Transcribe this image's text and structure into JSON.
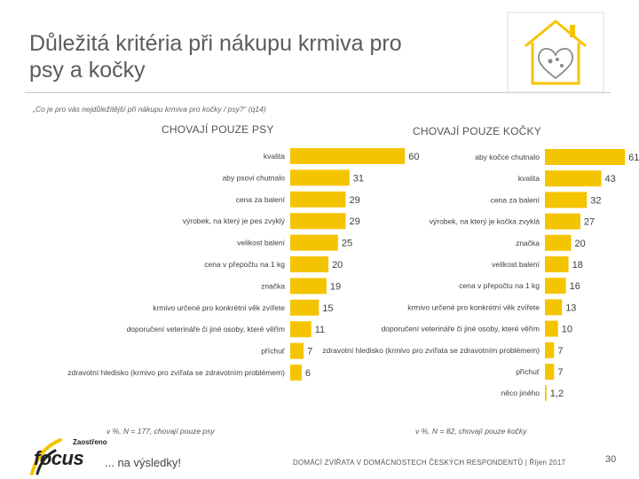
{
  "slide": {
    "title_line1": "Důležitá kritéria při nákupu krmiva pro",
    "title_line2": "psy a kočky",
    "question": "„Co je pro vás nejdůležitější při nákupu krmiva pro kočky / psy?“ (q14)",
    "footer": "DOMÁCÍ ZVÍŘATA V DOMÁCNOSTECH ČESKÝCH RESPONDENTŮ | Říjen 2017",
    "page_number": "30",
    "brand_top": "Zaostřeno",
    "brand_name": "focus",
    "brand_tagline": "... na výsledky!",
    "logo_icon": "house-heart-icon",
    "accent_color": "#f5c400"
  },
  "chart_data": [
    {
      "type": "bar",
      "orientation": "horizontal",
      "title": "CHOVAJÍ POUZE PSY",
      "note": "v %, N = 177, chovají pouze psy",
      "bar_color": "#f5c400",
      "xlim": [
        0,
        65
      ],
      "categories": [
        "kvalita",
        "aby psovi chutnalo",
        "cena za balení",
        "výrobek, na který je pes zvyklý",
        "velikost balení",
        "cena v přepočtu na 1 kg",
        "značka",
        "krmivo určené pro konkrétní věk zvířete",
        "doporučení veterináře či jiné osoby, které věřím",
        "příchuť",
        "zdravotní hledisko (krmivo pro zvířata se zdravotním problémem)"
      ],
      "values": [
        60,
        31,
        29,
        29,
        25,
        20,
        19,
        15,
        11,
        7,
        6
      ]
    },
    {
      "type": "bar",
      "orientation": "horizontal",
      "title": "CHOVAJÍ POUZE KOČKY",
      "note": "v %, N = 82, chovají pouze kočky",
      "bar_color": "#f5c400",
      "xlim": [
        0,
        65
      ],
      "categories": [
        "aby kočce chutnalo",
        "kvalita",
        "cena za balení",
        "výrobek, na který je kočka zvyklá",
        "značka",
        "velikost balení",
        "cena v přepočtu na 1 kg",
        "krmivo určené pro konkrétní věk zvířete",
        "doporučení veterináře či jiné osoby, které věřím",
        "zdravotní hledisko (krmivo pro zvířata se zdravotním problémem)",
        "příchuť",
        "něco jiného"
      ],
      "values": [
        61,
        43,
        32,
        27,
        20,
        18,
        16,
        13,
        10,
        7,
        7,
        1.2
      ],
      "value_labels": [
        "61",
        "43",
        "32",
        "27",
        "20",
        "18",
        "16",
        "13",
        "10",
        "7",
        "7",
        "1,2"
      ]
    }
  ]
}
